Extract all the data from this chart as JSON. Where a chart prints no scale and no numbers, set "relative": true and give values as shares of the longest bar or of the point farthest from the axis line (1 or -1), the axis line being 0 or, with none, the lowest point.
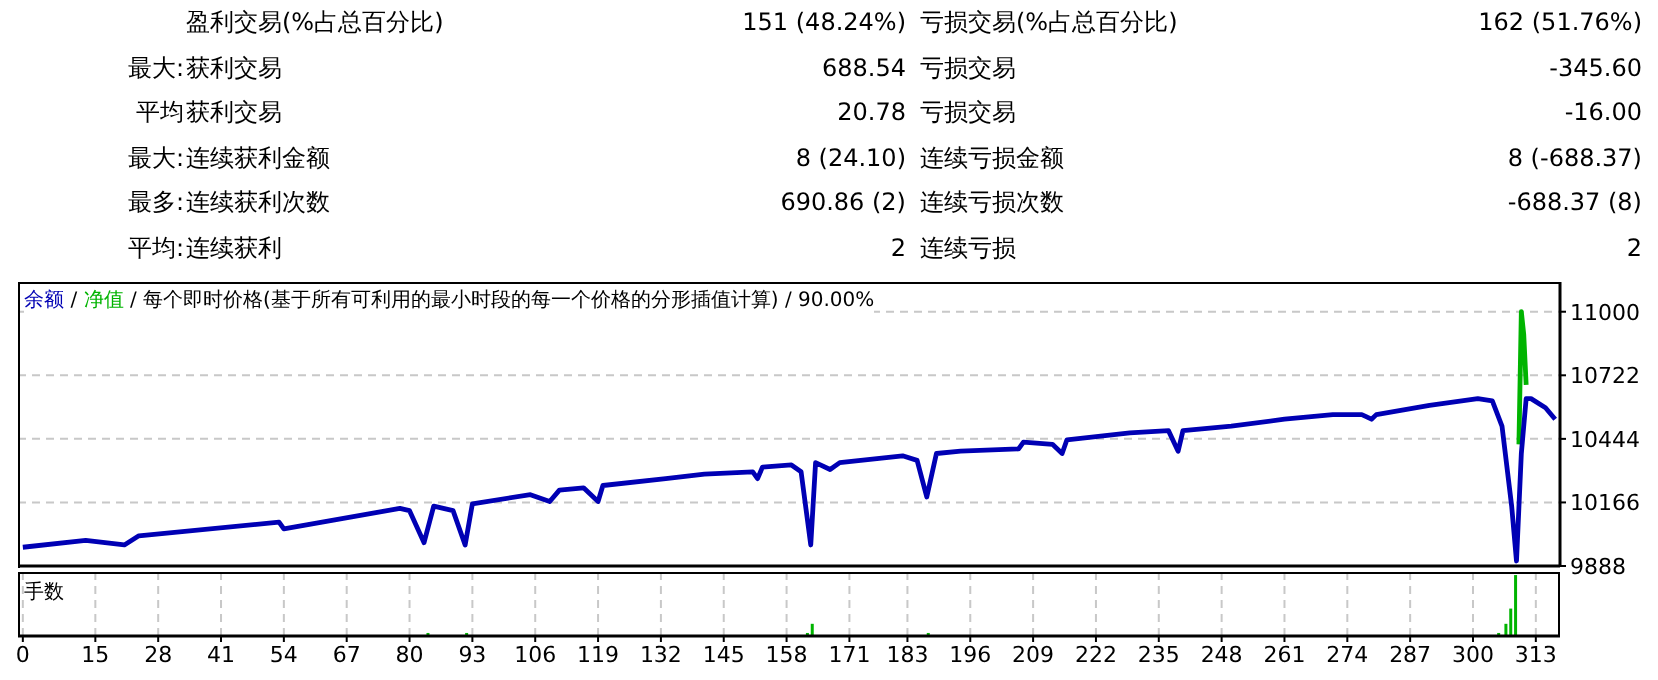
{
  "chart_data": [
    {
      "type": "other",
      "annotations": [
        "盈利交易(%占总百分比)",
        "151 (48.24%)",
        "亏损交易(%占总百分比)",
        "162 (51.76%)",
        "最大:",
        "获利交易",
        "688.54",
        "亏损交易",
        "-345.60",
        "平均",
        "获利交易",
        "20.78",
        "亏损交易",
        "-16.00",
        "最大:",
        "连续获利金额",
        "8 (24.10)",
        "连续亏损金额",
        "8 (-688.37)",
        "最多:",
        "连续获利次数",
        "690.86 (2)",
        "连续亏损次数",
        "-688.37 (8)",
        "平均:",
        "连续获利",
        "2",
        "连续亏损",
        "2"
      ]
    },
    {
      "type": "line",
      "title": "每个即时价格(基于所有可利用的最小时段的每一个价格的分形插值计算) / 90.00%",
      "legend": "top left",
      "annotations": [
        "/",
        "/"
      ],
      "grid": true,
      "tick_labels": "y",
      "xlim": [
        -1,
        318
      ],
      "xticks": [
        0,
        15,
        28,
        41,
        54,
        67,
        80,
        93,
        106,
        119,
        132,
        145,
        158,
        171,
        183,
        196,
        209,
        222,
        235,
        248,
        261,
        274,
        287,
        300,
        313
      ],
      "ylim": [
        9888,
        11130
      ],
      "yticks": [
        9888,
        10166,
        10444,
        10722,
        11000
      ],
      "series": [
        {
          "name": "余额",
          "color": "#0000b4",
          "x": [
            0,
            13,
            21,
            24,
            53,
            54,
            78,
            80,
            83,
            85,
            89,
            91.5,
            93,
            105,
            109,
            111,
            116,
            119,
            120,
            133,
            141,
            151,
            152,
            153,
            159,
            161,
            163,
            164,
            167,
            169,
            182,
            185,
            187,
            189,
            194,
            206,
            207,
            213,
            215,
            216,
            229,
            237,
            239,
            240,
            250,
            261,
            271,
            277,
            279,
            280,
            291,
            301,
            304,
            306,
            308,
            309,
            310,
            311,
            312,
            315,
            317
          ],
          "values": [
            9970,
            10000,
            9980,
            10020,
            10080,
            10050,
            10140,
            10130,
            9990,
            10150,
            10130,
            9980,
            10160,
            10200,
            10170,
            10220,
            10230,
            10170,
            10240,
            10270,
            10290,
            10300,
            10270,
            10320,
            10330,
            10300,
            9980,
            10340,
            10310,
            10340,
            10370,
            10350,
            10190,
            10380,
            10390,
            10400,
            10430,
            10420,
            10380,
            10440,
            10470,
            10480,
            10390,
            10480,
            10500,
            10530,
            10550,
            10550,
            10530,
            10550,
            10590,
            10620,
            10610,
            10500,
            10150,
            9910,
            10380,
            10620,
            10620,
            10580,
            10530
          ]
        },
        {
          "name": "净值",
          "color": "#00b400",
          "x": [
            309.5,
            310,
            310.5,
            311
          ],
          "values": [
            10420,
            11000,
            10900,
            10680
          ]
        }
      ]
    },
    {
      "type": "bar",
      "title": "手数",
      "relative": true,
      "grid": "x",
      "tick_labels": "x",
      "color": "#00b400",
      "xlim": [
        -1,
        318
      ],
      "xticks": [
        0,
        15,
        28,
        41,
        54,
        67,
        80,
        93,
        106,
        119,
        132,
        145,
        158,
        171,
        183,
        196,
        209,
        222,
        235,
        248,
        261,
        274,
        287,
        300,
        313
      ],
      "x": [
        84,
        92,
        162.5,
        163.5,
        187.5,
        305.5,
        307,
        308,
        309
      ],
      "values": [
        0.05,
        0.05,
        0.05,
        0.2,
        0.05,
        0.05,
        0.2,
        0.45,
        1
      ]
    }
  ]
}
